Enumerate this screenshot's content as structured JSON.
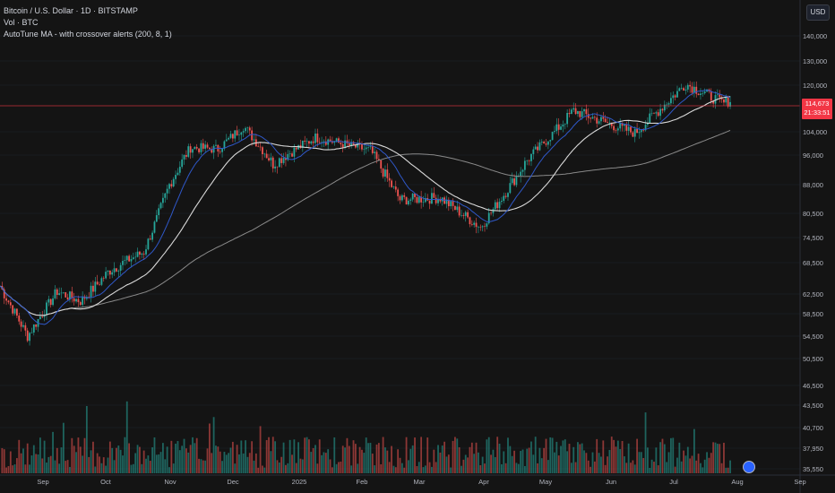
{
  "header": {
    "symbol_line": "Bitcoin / U.S. Dollar · 1D · BITSTAMP",
    "volume_line": "Vol · BTC",
    "indicator_line": "AutoTune MA - with crossover alerts (200, 8, 1)",
    "currency_button": "USD"
  },
  "price_axis": {
    "ticks": [
      "140,000",
      "130,000",
      "120,000",
      "104,000",
      "96,000",
      "88,000",
      "80,500",
      "74,500",
      "68,500",
      "62,500",
      "58,500",
      "54,500",
      "50,500",
      "46,500",
      "43,500",
      "40,700",
      "37,950",
      "35,550"
    ]
  },
  "time_axis": {
    "ticks": [
      "Sep",
      "Oct",
      "Nov",
      "Dec",
      "2025",
      "Feb",
      "Mar",
      "Apr",
      "May",
      "Jun",
      "Jul",
      "Aug",
      "Sep"
    ]
  },
  "last_price": {
    "value": "114,673",
    "countdown": "21:33:51"
  },
  "colors": {
    "up": "#26a69a",
    "down": "#ef5350",
    "background": "#141414",
    "ma_white": "#d9d9d9",
    "ma_blue": "#2f58c9",
    "ma_light": "#8a8a8a",
    "last_price": "#f23645"
  },
  "chart_data": {
    "type": "candlestick",
    "interval": "1D",
    "y_scale": "log",
    "x_range": [
      "2024-08-24",
      "2025-09-06"
    ],
    "series_approx_closes": [
      {
        "date": "2024-08-24",
        "value": 64000
      },
      {
        "date": "2024-09-06",
        "value": 54500
      },
      {
        "date": "2024-09-20",
        "value": 63000
      },
      {
        "date": "2024-10-01",
        "value": 61000
      },
      {
        "date": "2024-10-15",
        "value": 67000
      },
      {
        "date": "2024-10-31",
        "value": 71000
      },
      {
        "date": "2024-11-12",
        "value": 88000
      },
      {
        "date": "2024-11-22",
        "value": 98500
      },
      {
        "date": "2024-12-05",
        "value": 98000
      },
      {
        "date": "2024-12-17",
        "value": 106000
      },
      {
        "date": "2024-12-31",
        "value": 93500
      },
      {
        "date": "2025-01-20",
        "value": 102000
      },
      {
        "date": "2025-02-15",
        "value": 97500
      },
      {
        "date": "2025-03-01",
        "value": 84000
      },
      {
        "date": "2025-03-20",
        "value": 84500
      },
      {
        "date": "2025-04-08",
        "value": 77000
      },
      {
        "date": "2025-04-30",
        "value": 94500
      },
      {
        "date": "2025-05-22",
        "value": 111000
      },
      {
        "date": "2025-06-20",
        "value": 103500
      },
      {
        "date": "2025-07-14",
        "value": 120500
      },
      {
        "date": "2025-08-01",
        "value": 113500
      },
      {
        "date": "2025-08-04",
        "value": 114673
      }
    ],
    "volume_panel": true
  }
}
